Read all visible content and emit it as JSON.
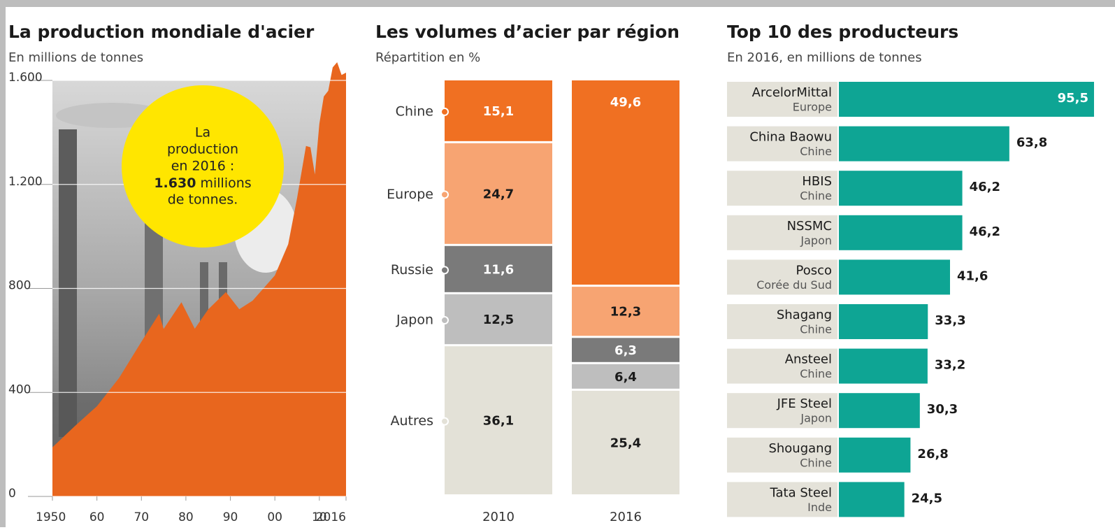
{
  "chart_data": [
    {
      "type": "area",
      "title": "La production mondiale d'acier",
      "subtitle": "En millions de tonnes",
      "x": [
        1950,
        1955,
        1960,
        1965,
        1970,
        1974,
        1975,
        1979,
        1982,
        1985,
        1989,
        1992,
        1995,
        2000,
        2003,
        2005,
        2007,
        2008,
        2009,
        2010,
        2011,
        2012,
        2013,
        2014,
        2015,
        2016
      ],
      "values": [
        189,
        270,
        347,
        456,
        595,
        703,
        644,
        747,
        645,
        719,
        786,
        720,
        753,
        850,
        970,
        1148,
        1348,
        1343,
        1238,
        1433,
        1538,
        1560,
        1650,
        1670,
        1621,
        1630
      ],
      "color": "#e8661e",
      "xlim": [
        1950,
        2016
      ],
      "xticks": [
        1950,
        {
          "value": 1960,
          "label": "60"
        },
        {
          "value": 1970,
          "label": "70"
        },
        {
          "value": 1980,
          "label": "80"
        },
        {
          "value": 1990,
          "label": "90"
        },
        {
          "value": 2000,
          "label": "00"
        },
        {
          "value": 2010,
          "label": "10"
        },
        2016
      ],
      "ylim": [
        0,
        1600
      ],
      "yticks": [
        0,
        400,
        800,
        {
          "value": 1200,
          "label": "1.200"
        },
        {
          "value": 1600,
          "label": "1.600"
        }
      ],
      "grid": true,
      "annotation": {
        "lines": [
          "La",
          "production",
          "en 2016 :"
        ],
        "highlight": "1.630",
        "tail": "millions",
        "end": "de tonnes."
      }
    },
    {
      "type": "stacked_bar",
      "title": "Les volumes d’acier par région",
      "subtitle": "Répartition en %",
      "categories": [
        "2010",
        "2016"
      ],
      "series": [
        {
          "name": "Chine",
          "color": "#f07022",
          "label_color": "#ffffff",
          "values": [
            15.1,
            49.6
          ],
          "value_labels": [
            "15,1",
            "49,6"
          ]
        },
        {
          "name": "Europe",
          "color": "#f7a472",
          "label_color": "#1a1a1a",
          "values": [
            24.7,
            12.3
          ],
          "value_labels": [
            "24,7",
            "12,3"
          ]
        },
        {
          "name": "Russie",
          "color": "#7a7a7a",
          "label_color": "#ffffff",
          "values": [
            11.6,
            6.3
          ],
          "value_labels": [
            "11,6",
            "6,3"
          ]
        },
        {
          "name": "Japon",
          "color": "#bebebe",
          "label_color": "#1a1a1a",
          "values": [
            12.5,
            6.4
          ],
          "value_labels": [
            "12,5",
            "6,4"
          ]
        },
        {
          "name": "Autres",
          "color": "#e3e1d7",
          "label_color": "#1a1a1a",
          "values": [
            36.1,
            25.4
          ],
          "value_labels": [
            "36,1",
            "25,4"
          ]
        }
      ]
    },
    {
      "type": "hbar",
      "title": "Top 10 des producteurs",
      "subtitle": "En 2016, en millions de tonnes",
      "categories": [
        "ArcelorMittal",
        "China Baowu",
        "HBIS",
        "NSSMC",
        "Posco",
        "Shagang",
        "Ansteel",
        "JFE Steel",
        "Shougang",
        "Tata Steel"
      ],
      "countries": [
        "Europe",
        "Chine",
        "Chine",
        "Japon",
        "Corée du Sud",
        "Chine",
        "Chine",
        "Japon",
        "Chine",
        "Inde"
      ],
      "values": [
        95.5,
        63.8,
        46.2,
        46.2,
        41.6,
        33.3,
        33.2,
        30.3,
        26.8,
        24.5
      ],
      "value_labels": [
        "95,5",
        "63,8",
        "46,2",
        "46,2",
        "41,6",
        "33,3",
        "33,2",
        "30,3",
        "26,8",
        "24,5"
      ],
      "color": "#0ea594",
      "label_background": "#e4e2d9"
    }
  ]
}
